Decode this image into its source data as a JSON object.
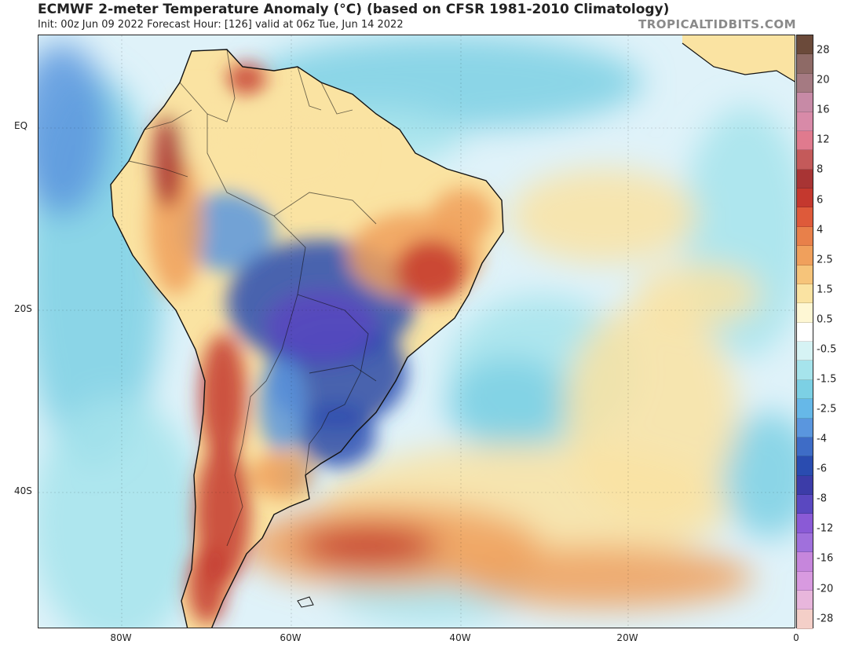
{
  "header": {
    "title": "ECMWF 2-meter Temperature Anomaly (°C) (based on CFSR 1981-2010 Climatology)",
    "subtitle": "Init: 00z Jun 09 2022   Forecast Hour: [126]   valid at 06z Tue, Jun 14 2022",
    "credit": "TROPICALTIDBITS.COM"
  },
  "axes": {
    "lat_labels": [
      "EQ",
      "20S",
      "40S"
    ],
    "lon_labels": [
      "80W",
      "60W",
      "40W",
      "20W",
      "0"
    ]
  },
  "colorbar": {
    "labels": [
      "28",
      "20",
      "16",
      "12",
      "8",
      "6",
      "4",
      "2.5",
      "1.5",
      "0.5",
      "-0.5",
      "-1.5",
      "-2.5",
      "-4",
      "-6",
      "-8",
      "-12",
      "-16",
      "-20",
      "-28"
    ],
    "colors": [
      "#6b4a3a",
      "#8e6a66",
      "#a57a82",
      "#c78aa6",
      "#d88aa8",
      "#e07a8e",
      "#c45a5a",
      "#a83434",
      "#c4382e",
      "#de5a3a",
      "#e8804a",
      "#f0a05c",
      "#f6c47a",
      "#fae3a2",
      "#fef7d4",
      "#ffffff",
      "#d6f3f4",
      "#a6e4ec",
      "#7cd0e4",
      "#66b8e8",
      "#5a96de",
      "#3e6cc6",
      "#2a4cb0",
      "#3c3ca8",
      "#5a48c0",
      "#8a5ad6",
      "#a070dc",
      "#c686dc",
      "#d89ae0",
      "#e8b6dc",
      "#f4cfc8"
    ]
  },
  "map_colors": {
    "ocean_base": "#dff2f9",
    "cold_light": "#a6e4ec",
    "cold_mid": "#7cd0e4",
    "cold_blue": "#5a96de",
    "cold_deep": "#2a4cb0",
    "cold_purple": "#5a48c0",
    "warm_light": "#fae3a2",
    "warm_mid": "#f0a05c",
    "warm_red": "#c4382e",
    "warm_deep": "#a83434",
    "coast": "#111111"
  }
}
